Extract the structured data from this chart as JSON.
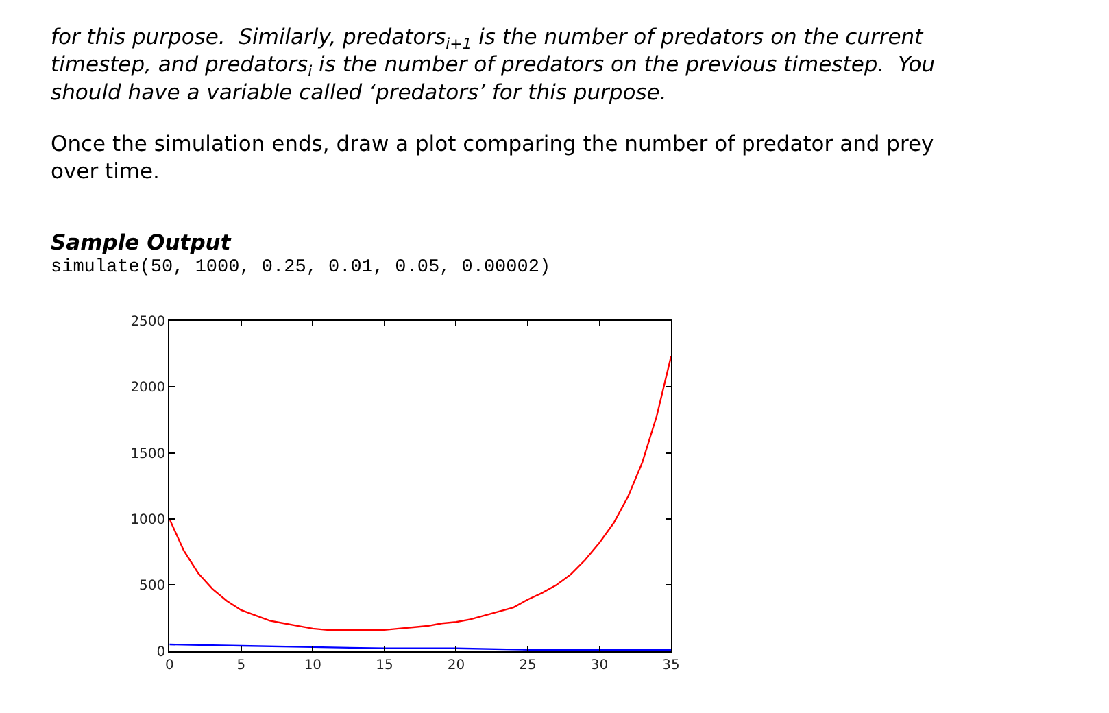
{
  "chart_data": {
    "type": "line",
    "title": "Sample Output",
    "subtitle": "simulate(50, 1000, 0.25, 0.01, 0.05, 0.00002)",
    "annotations": [
      "for this purpose.  Similarly, predators$_{i+1}$ is the number of predators on the current\ntimestep, and predators$_{i}$ is the number of predators on the previous timestep.  You\nshould have a variable called ‘predators’ for this purpose.",
      "Once the simulation ends, draw a plot comparing the number of predator and prey\nover time."
    ],
    "series": [
      {
        "color": "#ff0000",
        "x": [
          0,
          1,
          2,
          3,
          4,
          5,
          6,
          7,
          8,
          9,
          10,
          11,
          12,
          13,
          14,
          15,
          16,
          17,
          18,
          19,
          20,
          21,
          22,
          23,
          24,
          25,
          26,
          27,
          28,
          29,
          30,
          31,
          32,
          33,
          34,
          35
        ],
        "values": [
          1000,
          760,
          590,
          470,
          380,
          310,
          270,
          230,
          210,
          190,
          170,
          160,
          160,
          160,
          160,
          160,
          170,
          180,
          190,
          210,
          220,
          240,
          270,
          300,
          330,
          390,
          440,
          500,
          580,
          690,
          820,
          970,
          1170,
          1430,
          1780,
          2230
        ]
      },
      {
        "color": "#0000ff",
        "x": [
          0,
          5,
          10,
          15,
          20,
          25,
          30,
          35
        ],
        "values": [
          50,
          40,
          30,
          20,
          20,
          10,
          10,
          10
        ]
      }
    ],
    "xlim": [
      0,
      35
    ],
    "xticks": [
      0,
      5,
      10,
      15,
      20,
      25,
      30,
      35
    ],
    "ylim": [
      0,
      2500
    ],
    "yticks": [
      0,
      500,
      1000,
      1500,
      2000,
      2500
    ],
    "marker": "none",
    "line_style": "solid"
  }
}
